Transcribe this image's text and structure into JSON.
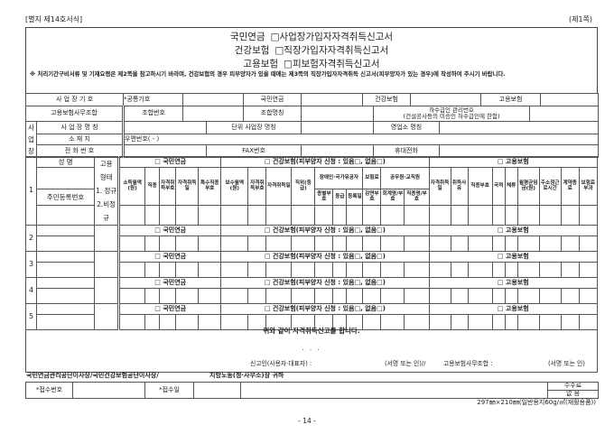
{
  "header": {
    "form_number": "[별지 제14호서식]",
    "page": "(제1쪽)"
  },
  "title": {
    "lines": [
      {
        "prefix": "국민연금",
        "text": "□사업장가입자자격취득신고서"
      },
      {
        "prefix": "건강보험",
        "text": "□직장가입자자격취득신고서"
      },
      {
        "prefix": "고용보험",
        "text": "□피보험자격취득신고서"
      }
    ],
    "note": "※ 처리기간구비서류 및 기재요령은 제2쪽을 참고하시기 바라며, 건강보험의 경우 피부양자가 있을 때에는 제3쪽의 직장가입자자격취득 신고서(피부양자가 있는 경우)에 작성하여 주시기 바랍니다."
  },
  "business": {
    "code_label": "사 업 장 기 호",
    "common_code_label": "*공통기호",
    "np_label": "국민연금",
    "hi_label": "건강보험",
    "ei_label": "고용보험",
    "union_label": "고용보험사무조합",
    "union_number_label": "조합번호",
    "union_name_label": "조합명칭",
    "subcontractor_label_1": "하수급인 관리번호",
    "subcontractor_label_2": "(건설공사등의 미승인 하수급인에 한함)",
    "side_label": "사\n업\n장",
    "name_label": "사 업 장 명 칭",
    "unit_name_label": "단위 사업장 명칭",
    "branch_label": "영업소 명칭",
    "address_label": "소   재   지",
    "postal_value": "우편번호(  -  )",
    "phone_label": "전 화 번 호",
    "fax_label": "FAX번호",
    "mobile_label": "휴대전화"
  },
  "persons": {
    "rows": [
      "1",
      "2",
      "3",
      "4",
      "5"
    ],
    "name_label": "성       명",
    "rrn_label": "주민등록번호",
    "employment_type_label": "고용\n형태\n1. 정규\n2.비정\n규",
    "sections": {
      "np": "□ 국민연금",
      "hi": "□ 건강보험(피부양자 신청 : 있음□, 없음□)",
      "ei": "□ 고용보험"
    },
    "np_columns": [
      "소득월액(원)",
      "직종",
      "자격취득부호",
      "자격취득일",
      "특수직종부호"
    ],
    "hi_columns": [
      "보수월액(원)",
      "자격취득부호",
      "자격취득일",
      "직위(등급)"
    ],
    "hi_groups": [
      {
        "label": "장애인·국가유공자",
        "sub": [
          "종별부호",
          "등급",
          "등록일"
        ]
      },
      {
        "label": "보험료",
        "sub": [
          "감면부호"
        ]
      },
      {
        "label": "공무원·교직원",
        "sub": [
          "회계명/부호",
          "직종명/부호"
        ]
      }
    ],
    "ei_columns": [
      "자격취득일",
      "취득사유",
      "직종부호",
      "국적",
      "체류",
      "월평균임금(원)",
      "주소정근로시간",
      "계약종료",
      "보험료부과"
    ]
  },
  "declaration": {
    "statement": "위와 같이 자격취득신고를 합니다.",
    "date": ".    .    .",
    "reporter_label": "신고인(사용자·대표자) :",
    "sign_1": "(서명 또는 인)//",
    "union_label": "고용보험사무조합 :",
    "sign_2": "(서명 또는 인)",
    "addressee_1": "국민연금관리공단이사장/국민건강보험공단이사장/",
    "addressee_2": "지방노동(청·사무소)장 귀하"
  },
  "receipt": {
    "number_label": "*접수번호",
    "date_label": "*접수일",
    "fee_label": "수수료",
    "fee_value": "없  음"
  },
  "footer": {
    "paper_size": "297㎜×210㎜(일반용지60g/㎡(재활용품))",
    "page_number": "- 14 -"
  }
}
